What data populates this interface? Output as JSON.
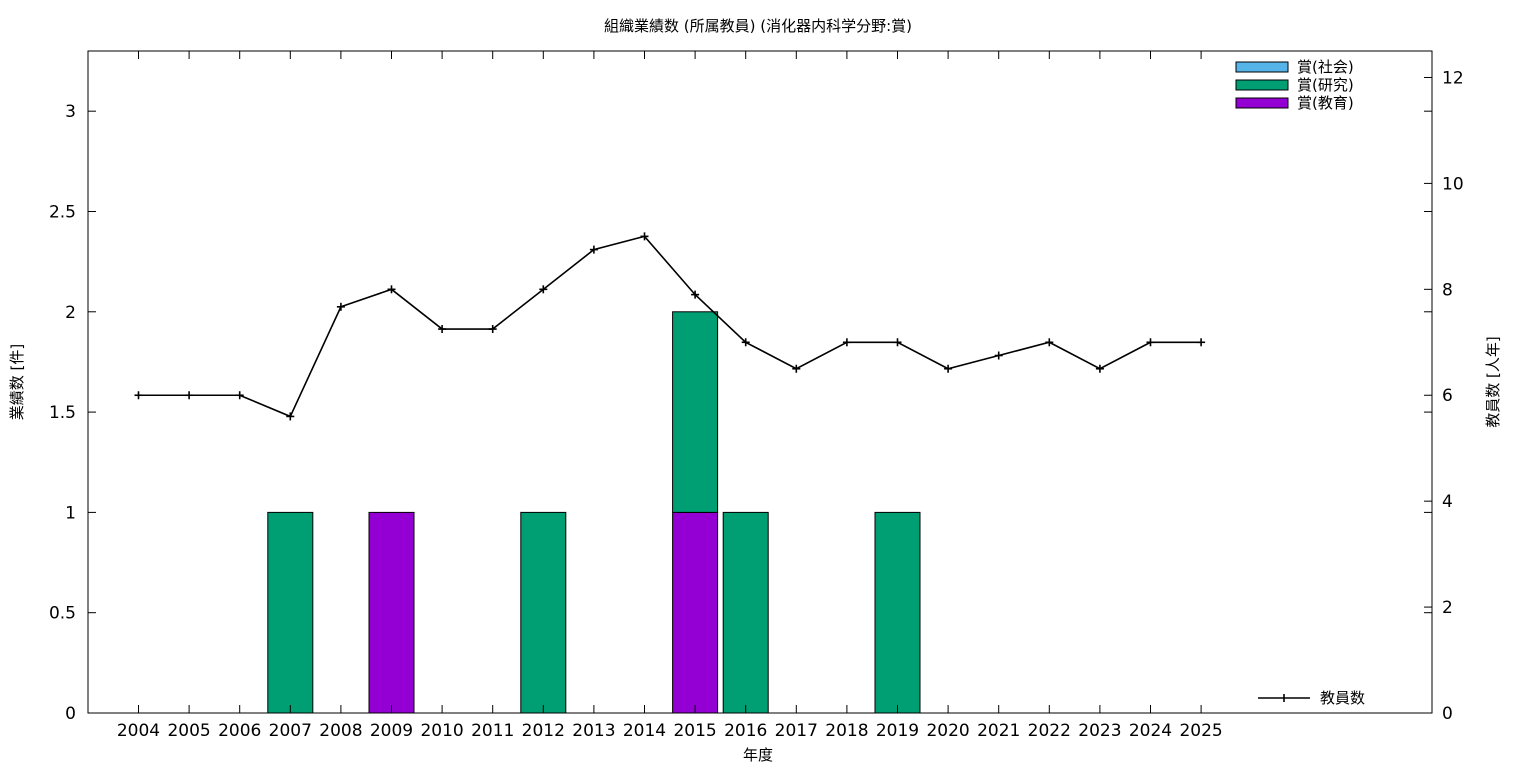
{
  "chart_data": {
    "type": "bar",
    "title": "組織業績数 (所属教員) (消化器内科学分野:賞)",
    "xlabel": "年度",
    "ylabel": "業績数 [件]",
    "y2label": "教員数 [人年]",
    "categories": [
      "2004",
      "2005",
      "2006",
      "2007",
      "2008",
      "2009",
      "2010",
      "2011",
      "2012",
      "2013",
      "2014",
      "2015",
      "2016",
      "2017",
      "2018",
      "2019",
      "2020",
      "2021",
      "2022",
      "2023",
      "2024",
      "2025"
    ],
    "ylim": [
      0,
      3.3
    ],
    "yticks": [
      "0",
      "0.5",
      "1",
      "1.5",
      "2",
      "2.5",
      "3"
    ],
    "y2lim": [
      0,
      12.5
    ],
    "y2ticks": [
      "0",
      "2",
      "4",
      "6",
      "8",
      "10",
      "12"
    ],
    "stacked": true,
    "series": [
      {
        "name": "賞(教育)",
        "color": "#9400d3",
        "values": [
          0,
          0,
          0,
          0,
          0,
          1,
          0,
          0,
          0,
          0,
          0,
          1,
          0,
          0,
          0,
          0,
          0,
          0,
          0,
          0,
          0,
          0
        ]
      },
      {
        "name": "賞(研究)",
        "color": "#009e73",
        "values": [
          0,
          0,
          0,
          1,
          0,
          0,
          0,
          0,
          1,
          0,
          0,
          1,
          1,
          0,
          0,
          1,
          0,
          0,
          0,
          0,
          0,
          0
        ]
      },
      {
        "name": "賞(社会)",
        "color": "#56b4e9",
        "values": [
          0,
          0,
          0,
          0,
          0,
          0,
          0,
          0,
          0,
          0,
          0,
          0,
          0,
          0,
          0,
          0,
          0,
          0,
          0,
          0,
          0,
          0
        ]
      }
    ],
    "bar_legend": [
      "賞(社会)",
      "賞(研究)",
      "賞(教育)"
    ],
    "bar_legend_position": "top-right",
    "line": {
      "name": "教員数",
      "color": "#000000",
      "axis": "y2",
      "values": [
        6,
        6,
        6,
        5.6,
        7.67,
        8,
        7.25,
        7.25,
        8,
        8.75,
        9,
        7.9,
        7,
        6.5,
        7,
        7,
        6.5,
        6.75,
        7,
        6.5,
        7,
        7
      ]
    },
    "line_legend_position": "bottom-right",
    "grid": false
  }
}
